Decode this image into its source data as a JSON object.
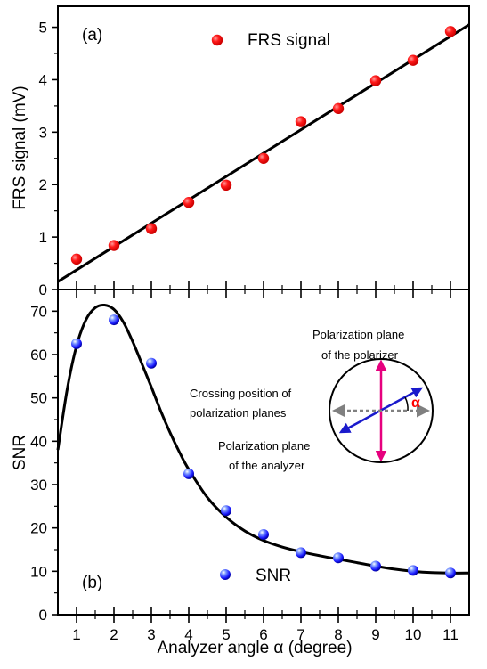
{
  "chart_data": [
    {
      "type": "scatter",
      "panel_label": "(a)",
      "xlabel": "",
      "ylabel": "FRS signal (mV)",
      "xlim": [
        0.5,
        11.5
      ],
      "ylim": [
        0,
        5.4
      ],
      "x_ticks": [
        1,
        2,
        3,
        4,
        5,
        6,
        7,
        8,
        9,
        10,
        11
      ],
      "y_ticks": [
        0,
        1,
        2,
        3,
        4,
        5
      ],
      "y_tick_labels": [
        "0",
        "1",
        "2",
        "3",
        "4",
        "5"
      ],
      "legend": "top-center",
      "grid": false,
      "series": [
        {
          "name": "FRS signal",
          "color": "#ff0000",
          "x": [
            1,
            2,
            3,
            4,
            5,
            6,
            7,
            8,
            9,
            10,
            11
          ],
          "y": [
            0.58,
            0.84,
            1.16,
            1.66,
            1.99,
            2.5,
            3.2,
            3.45,
            3.98,
            4.37,
            4.92
          ]
        }
      ],
      "fit_line": {
        "x": [
          0.5,
          11.5
        ],
        "y": [
          0.15,
          5.05
        ]
      }
    },
    {
      "type": "scatter",
      "panel_label": "(b)",
      "xlabel": "Analyzer angle α (degree)",
      "ylabel": "SNR",
      "xlim": [
        0.5,
        11.5
      ],
      "ylim": [
        0,
        75
      ],
      "x_ticks": [
        1,
        2,
        3,
        4,
        5,
        6,
        7,
        8,
        9,
        10,
        11
      ],
      "x_tick_labels": [
        "1",
        "2",
        "3",
        "4",
        "5",
        "6",
        "7",
        "8",
        "9",
        "10",
        "11"
      ],
      "y_ticks": [
        0,
        10,
        20,
        30,
        40,
        50,
        60,
        70
      ],
      "y_tick_labels": [
        "0",
        "10",
        "20",
        "30",
        "40",
        "50",
        "60",
        "70"
      ],
      "legend": "bottom-center",
      "grid": false,
      "series": [
        {
          "name": "SNR",
          "color": "#1a1aff",
          "x": [
            1,
            2,
            3,
            4,
            5,
            6,
            7,
            8,
            9,
            10,
            11
          ],
          "y": [
            62.5,
            68,
            58,
            32.5,
            24,
            18.5,
            14.3,
            13.1,
            11.2,
            10.2,
            9.6
          ]
        }
      ],
      "fit_curve": {
        "x": [
          0.5,
          0.75,
          1.0,
          1.25,
          1.5,
          1.75,
          2.0,
          2.25,
          2.5,
          2.75,
          3.0,
          3.25,
          3.5,
          3.75,
          4.0,
          4.5,
          5.0,
          5.5,
          6.0,
          6.5,
          7.0,
          7.5,
          8.0,
          8.5,
          9.0,
          9.5,
          10.0,
          10.5,
          11.0,
          11.5
        ],
        "y": [
          38,
          52,
          62,
          68,
          70.8,
          71.4,
          70.4,
          67.5,
          63,
          57.8,
          52.5,
          47,
          42,
          37.5,
          33.5,
          27,
          22.5,
          19.3,
          17.1,
          15.6,
          14.5,
          13.6,
          12.8,
          12.0,
          11.2,
          10.5,
          10.0,
          9.7,
          9.6,
          9.6
        ]
      },
      "inset": {
        "polarizer_label_1": "Polarization plane",
        "polarizer_label_2": "of the polarizer",
        "crossing_label_1": "Crossing position of",
        "crossing_label_2": "polarization planes",
        "analyzer_label_1": "Polarization plane",
        "analyzer_label_2": "of the analyzer",
        "angle_symbol": "α",
        "polarizer_color": "#e6007e",
        "analyzer_color": "#1a1acc",
        "crossing_color": "#808080",
        "angle_color": "#ff0000"
      }
    }
  ]
}
